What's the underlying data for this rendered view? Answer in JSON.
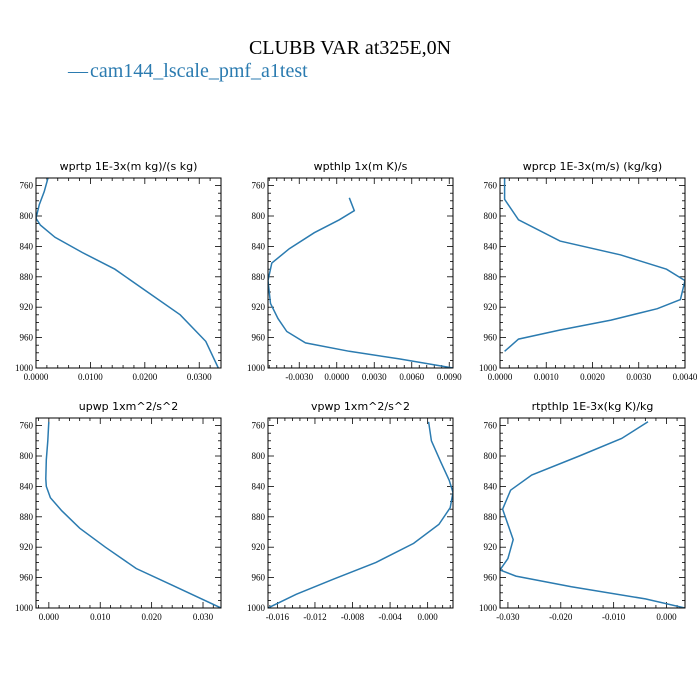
{
  "title": "CLUBB VAR at325E,0N",
  "legend": {
    "marker": "—",
    "label": "cam144_lscale_pmf_a1test",
    "color": "#2b7bb0"
  },
  "series_color": "#2b7bb0",
  "chart_data": [
    {
      "type": "line",
      "title": "wprtp  1E-3x(m kg)/(s kg)",
      "xlim": [
        0.0,
        0.034
      ],
      "ylim": [
        1000,
        750
      ],
      "xticks": [
        0.0,
        0.01,
        0.02,
        0.03
      ],
      "xtick_labels": [
        "0.0000",
        "0.0100",
        "0.0200",
        "0.0300"
      ],
      "yticks": [
        760,
        800,
        840,
        880,
        920,
        960,
        1000
      ],
      "series": [
        {
          "x": [
            0.0022,
            0.0015,
            0.0006,
            0.0,
            0.0008,
            0.0035,
            0.0085,
            0.0145,
            0.0205,
            0.0265,
            0.0312,
            0.0335
          ],
          "y": [
            750,
            768,
            785,
            803,
            812,
            828,
            848,
            870,
            900,
            930,
            965,
            1000
          ]
        }
      ]
    },
    {
      "type": "line",
      "title": "wpthlp  1x(m K)/s",
      "xlim": [
        -0.0055,
        0.0093
      ],
      "ylim": [
        1000,
        750
      ],
      "xticks": [
        -0.003,
        0.0,
        0.003,
        0.006,
        0.009
      ],
      "xtick_labels": [
        "-0.0030",
        "0.0000",
        "0.0030",
        "0.0060",
        "0.0090"
      ],
      "yticks": [
        760,
        800,
        840,
        880,
        920,
        960,
        1000
      ],
      "series": [
        {
          "x": [
            0.001,
            0.0014,
            0.0002,
            -0.0018,
            -0.0038,
            -0.0052,
            -0.0055,
            -0.0053,
            -0.0047,
            -0.004,
            -0.0025,
            0.001,
            0.005,
            0.0093
          ],
          "y": [
            776,
            793,
            805,
            822,
            843,
            862,
            885,
            915,
            935,
            952,
            967,
            978,
            988,
            1000
          ]
        }
      ]
    },
    {
      "type": "line",
      "title": "wprcp  1E-3x(m/s) (kg/kg)",
      "xlim": [
        0.0,
        0.004
      ],
      "ylim": [
        1000,
        750
      ],
      "xticks": [
        0.0,
        0.001,
        0.002,
        0.003,
        0.004
      ],
      "xtick_labels": [
        "0.0000",
        "0.0010",
        "0.0020",
        "0.0030",
        "0.0040"
      ],
      "yticks": [
        760,
        800,
        840,
        880,
        920,
        960,
        1000
      ],
      "series": [
        {
          "x": [
            0.0001,
            0.0001,
            0.0004,
            0.0013,
            0.0026,
            0.0036,
            0.004,
            0.0039,
            0.0034,
            0.0024,
            0.0013,
            0.0004,
            0.0001
          ],
          "y": [
            750,
            778,
            805,
            833,
            851,
            870,
            885,
            910,
            922,
            937,
            950,
            962,
            978
          ]
        }
      ]
    },
    {
      "type": "line",
      "title": "upwp  1xm^2/s^2",
      "xlim": [
        -0.0025,
        0.0335
      ],
      "ylim": [
        1000,
        750
      ],
      "xticks": [
        0.0,
        0.01,
        0.02,
        0.03
      ],
      "xtick_labels": [
        "0.000",
        "0.010",
        "0.020",
        "0.030"
      ],
      "yticks": [
        760,
        800,
        840,
        880,
        920,
        960,
        1000
      ],
      "series": [
        {
          "x": [
            0.0,
            -0.0002,
            -0.0005,
            -0.0006,
            -0.0005,
            0.0003,
            0.0025,
            0.006,
            0.011,
            0.017,
            0.024,
            0.0335
          ],
          "y": [
            755,
            780,
            805,
            830,
            840,
            855,
            872,
            895,
            920,
            948,
            970,
            1000
          ]
        }
      ]
    },
    {
      "type": "line",
      "title": "vpwp  1xm^2/s^2",
      "xlim": [
        -0.017,
        0.0027
      ],
      "ylim": [
        1000,
        750
      ],
      "xticks": [
        -0.016,
        -0.012,
        -0.008,
        -0.004,
        0.0
      ],
      "xtick_labels": [
        "-0.016",
        "-0.012",
        "-0.008",
        "-0.004",
        "0.000"
      ],
      "yticks": [
        760,
        800,
        840,
        880,
        920,
        960,
        1000
      ],
      "series": [
        {
          "x": [
            0.0001,
            0.0004,
            0.0014,
            0.0023,
            0.0027,
            0.0024,
            0.0012,
            -0.0015,
            -0.0055,
            -0.01,
            -0.014,
            -0.017
          ],
          "y": [
            755,
            780,
            808,
            832,
            848,
            868,
            890,
            915,
            940,
            962,
            982,
            1000
          ]
        }
      ]
    },
    {
      "type": "line",
      "title": "rtpthlp  1E-3x(kg K)/kg",
      "xlim": [
        -0.0315,
        0.0035
      ],
      "ylim": [
        1000,
        750
      ],
      "xticks": [
        -0.03,
        -0.02,
        -0.01,
        0.0
      ],
      "xtick_labels": [
        "-0.030",
        "-0.020",
        "-0.010",
        "0.000"
      ],
      "yticks": [
        760,
        800,
        840,
        880,
        920,
        960,
        1000
      ],
      "series": [
        {
          "x": [
            -0.0035,
            -0.0085,
            -0.0165,
            -0.0255,
            -0.0295,
            -0.031,
            -0.03,
            -0.029,
            -0.03,
            -0.0315,
            -0.0285,
            -0.018,
            -0.004,
            0.0035
          ],
          "y": [
            755,
            777,
            800,
            825,
            845,
            870,
            890,
            910,
            935,
            950,
            958,
            972,
            988,
            1000
          ]
        }
      ]
    }
  ]
}
